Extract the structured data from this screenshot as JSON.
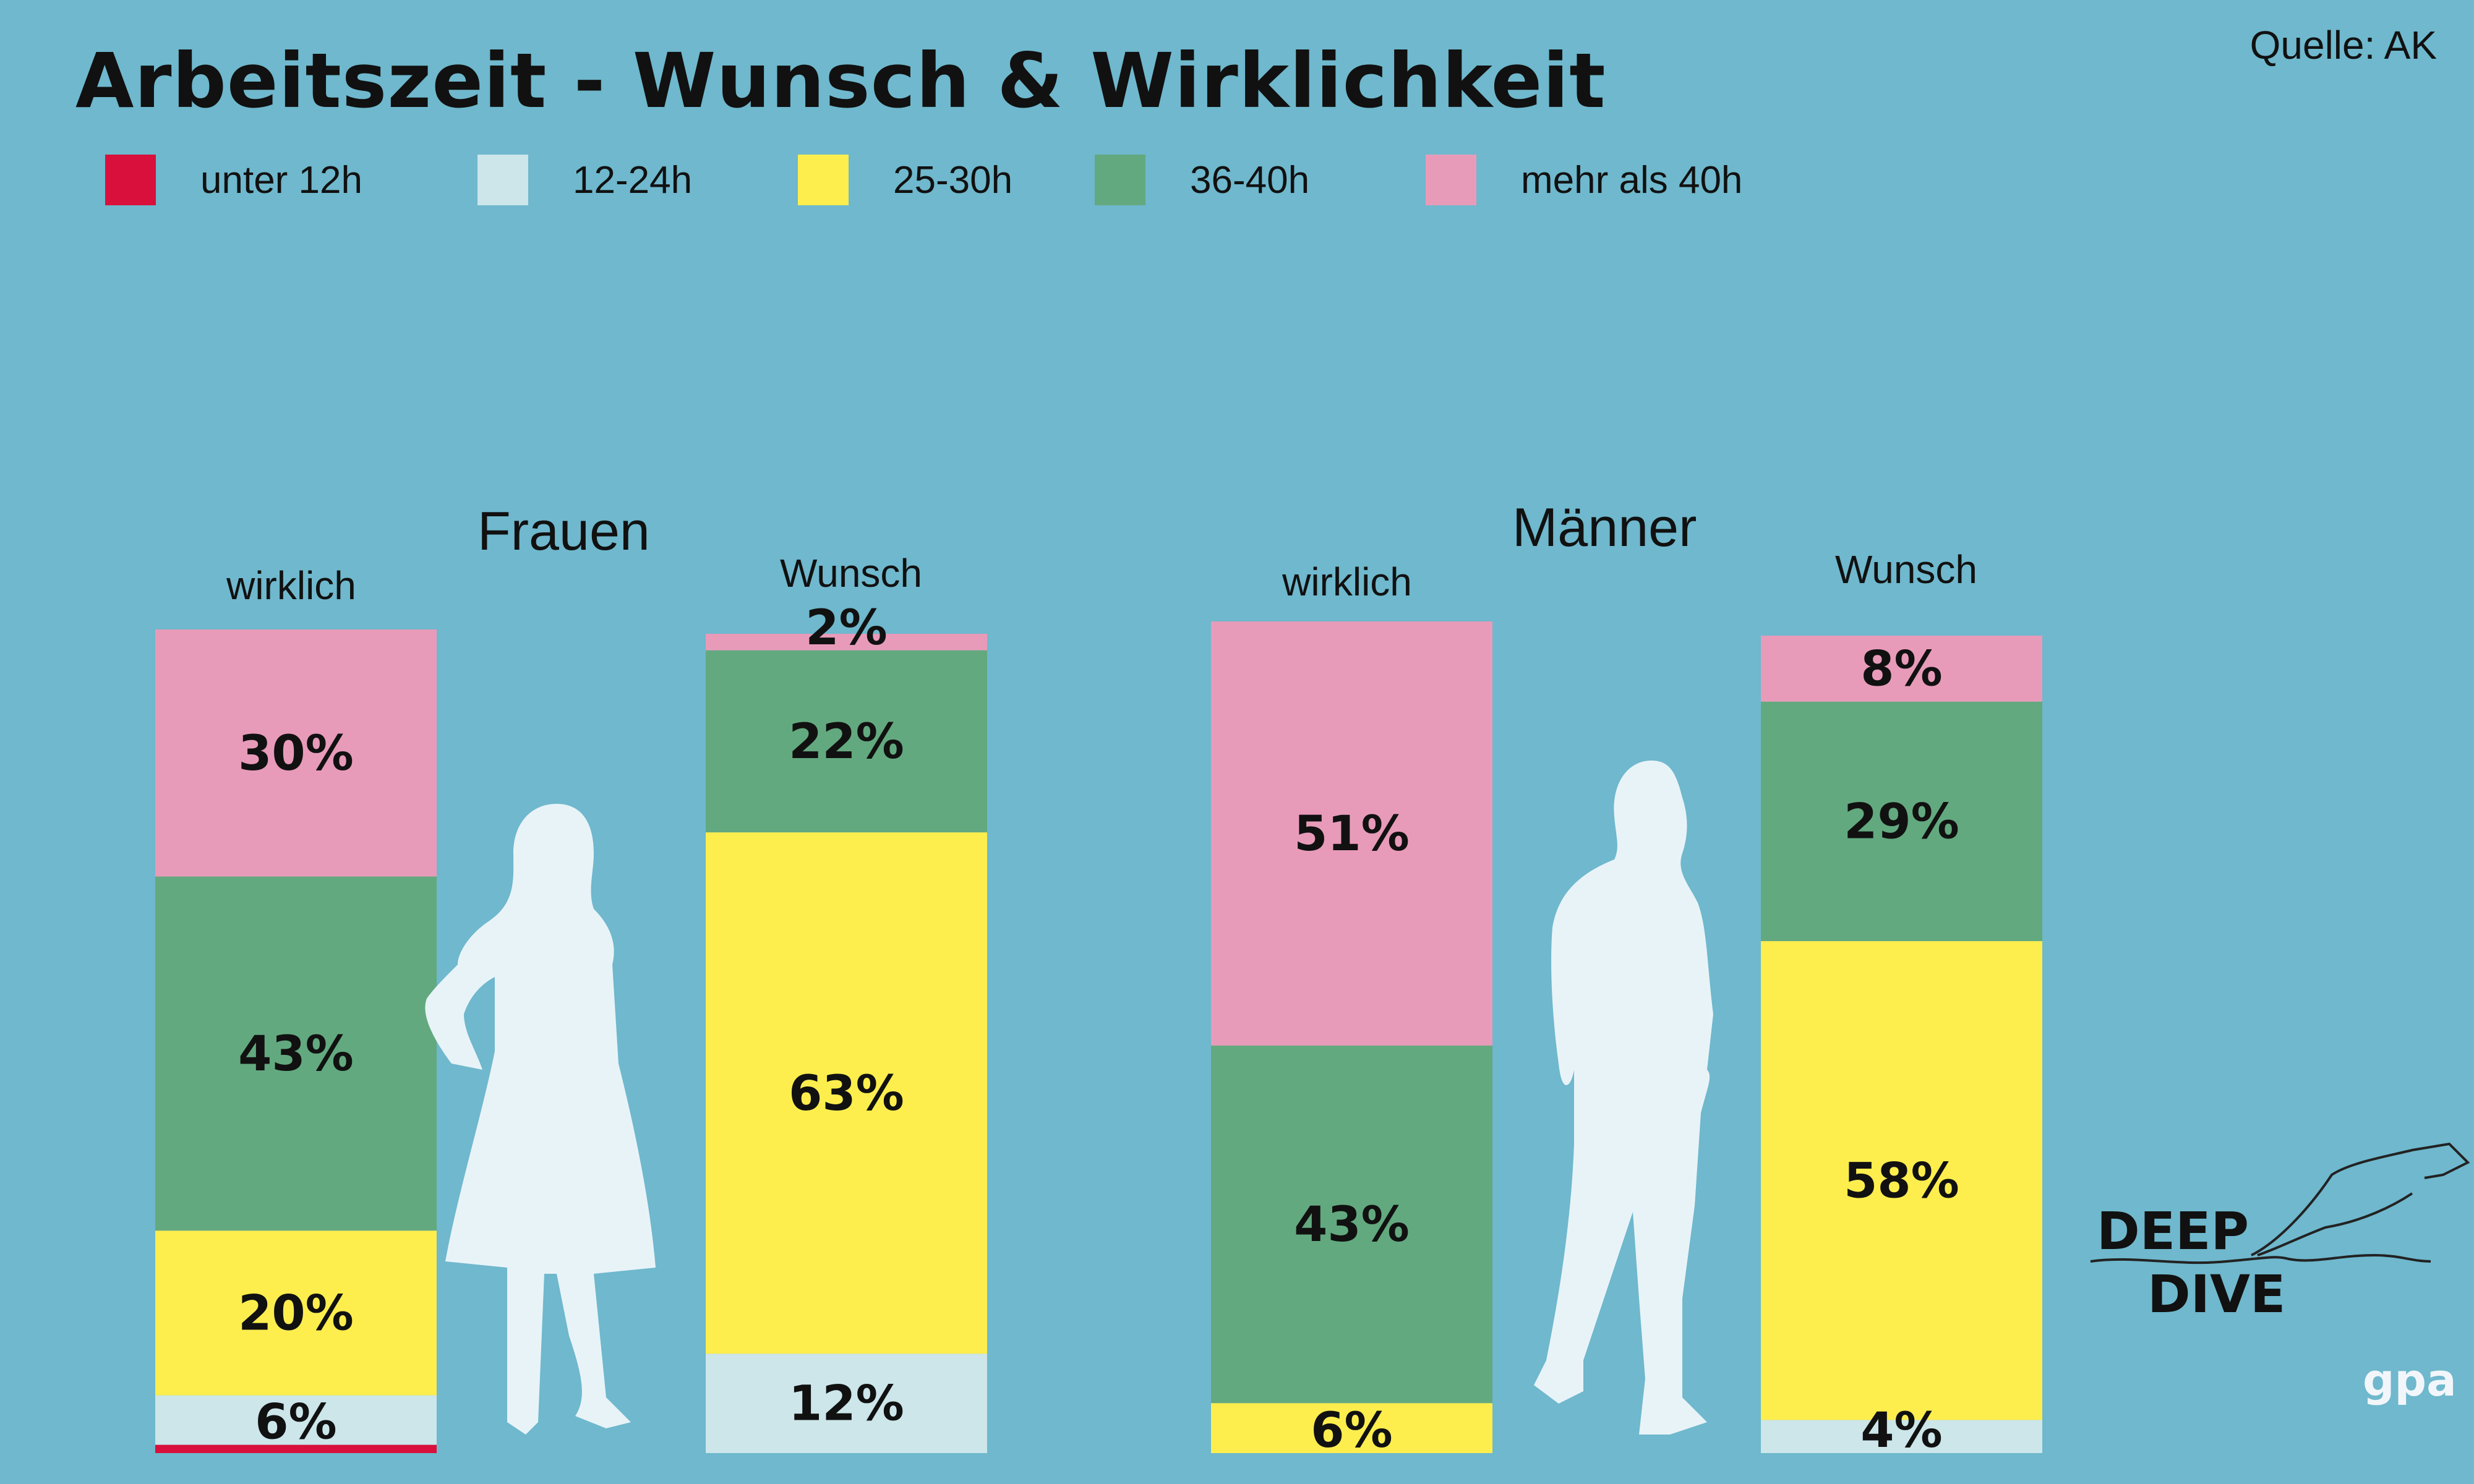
{
  "header": {
    "title": "Arbeitszeit - Wunsch & Wirklichkeit",
    "source": "Quelle: AK"
  },
  "logos": {
    "deep_dive_line1": "DEEP",
    "deep_dive_line2": "DIVE",
    "gpa": "gpa"
  },
  "colors": {
    "background": "#6fb8cd",
    "unter_12h": "#d9103c",
    "12_24h": "#cce6ea",
    "25_30h": "#fdee4e",
    "36_40h": "#63a97f",
    "mehr_40h": "#e89bb9",
    "silhouette": "#e8f3f8"
  },
  "chart_data": {
    "type": "bar",
    "stacked": true,
    "legend": [
      "unter 12h",
      "12-24h",
      "25-30h",
      "36-40h",
      "mehr als 40h"
    ],
    "groups": [
      {
        "title": "Frauen",
        "bars": [
          {
            "label": "wirklich",
            "segments": [
              {
                "category": "unter 12h",
                "value": 1,
                "label": ""
              },
              {
                "category": "12-24h",
                "value": 6,
                "label": "6%"
              },
              {
                "category": "25-30h",
                "value": 20,
                "label": "20%"
              },
              {
                "category": "36-40h",
                "value": 43,
                "label": "43%"
              },
              {
                "category": "mehr als 40h",
                "value": 30,
                "label": "30%"
              }
            ]
          },
          {
            "label": "Wunsch",
            "segments": [
              {
                "category": "unter 12h",
                "value": 0,
                "label": ""
              },
              {
                "category": "12-24h",
                "value": 12,
                "label": "12%"
              },
              {
                "category": "25-30h",
                "value": 63,
                "label": "63%"
              },
              {
                "category": "36-40h",
                "value": 22,
                "label": "22%"
              },
              {
                "category": "mehr als 40h",
                "value": 2,
                "label": "2%"
              }
            ]
          }
        ]
      },
      {
        "title": "Männer",
        "bars": [
          {
            "label": "wirklich",
            "segments": [
              {
                "category": "unter 12h",
                "value": 0,
                "label": ""
              },
              {
                "category": "12-24h",
                "value": 0,
                "label": ""
              },
              {
                "category": "25-30h",
                "value": 6,
                "label": "6%"
              },
              {
                "category": "36-40h",
                "value": 43,
                "label": "43%"
              },
              {
                "category": "mehr als 40h",
                "value": 51,
                "label": "51%"
              }
            ]
          },
          {
            "label": "Wunsch",
            "segments": [
              {
                "category": "unter 12h",
                "value": 0,
                "label": ""
              },
              {
                "category": "12-24h",
                "value": 4,
                "label": "4%"
              },
              {
                "category": "25-30h",
                "value": 58,
                "label": "58%"
              },
              {
                "category": "36-40h",
                "value": 29,
                "label": "29%"
              },
              {
                "category": "mehr als 40h",
                "value": 8,
                "label": "8%"
              }
            ]
          }
        ]
      }
    ]
  }
}
